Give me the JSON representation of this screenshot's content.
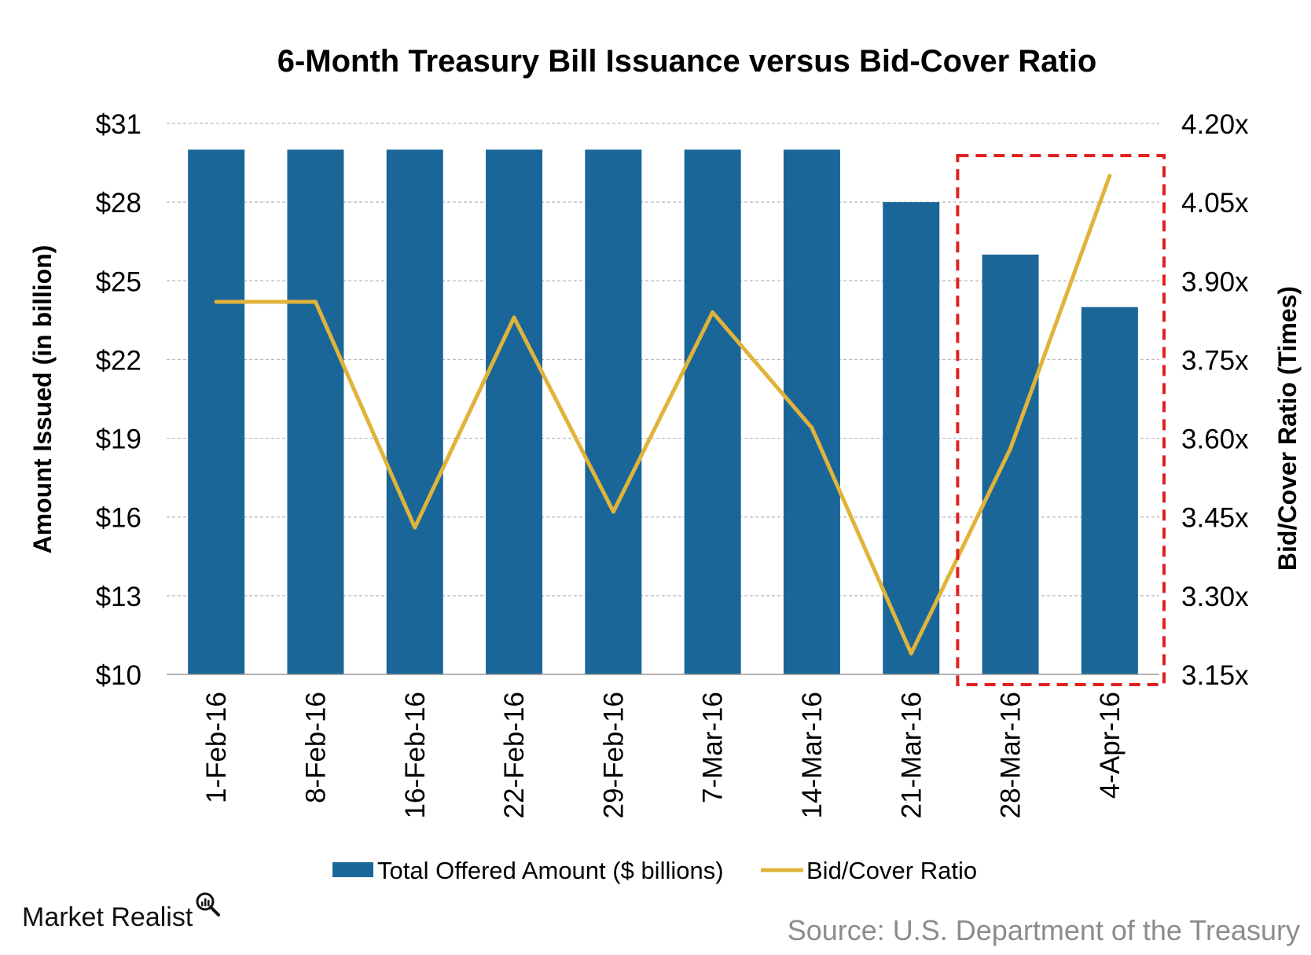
{
  "chart_data": {
    "type": "bar+line",
    "title": "6-Month Treasury Bill Issuance versus Bid-Cover Ratio",
    "categories": [
      "1-Feb-16",
      "8-Feb-16",
      "16-Feb-16",
      "22-Feb-16",
      "29-Feb-16",
      "7-Mar-16",
      "14-Mar-16",
      "21-Mar-16",
      "28-Mar-16",
      "4-Apr-16"
    ],
    "series": [
      {
        "name": "Total Offered Amount ($ billions)",
        "type": "bar",
        "axis": "left",
        "values": [
          30,
          30,
          30,
          30,
          30,
          30,
          30,
          28,
          26,
          24
        ]
      },
      {
        "name": "Bid/Cover Ratio",
        "type": "line",
        "axis": "right",
        "values": [
          3.86,
          3.86,
          3.43,
          3.83,
          3.46,
          3.84,
          3.62,
          3.19,
          3.58,
          4.1
        ]
      }
    ],
    "y_left": {
      "label": "Amount Issued (in billion)",
      "min": 10,
      "max": 31,
      "ticks": [
        "$10",
        "$13",
        "$16",
        "$19",
        "$22",
        "$25",
        "$28",
        "$31"
      ]
    },
    "y_right": {
      "label": "Bid/Cover Ratio (Times)",
      "min": 3.15,
      "max": 4.2,
      "ticks": [
        "3.15x",
        "3.30x",
        "3.45x",
        "3.60x",
        "3.75x",
        "3.90x",
        "4.05x",
        "4.20x"
      ]
    },
    "grid": true,
    "legend_position": "bottom",
    "highlight_categories": [
      "28-Mar-16",
      "4-Apr-16"
    ],
    "colors": {
      "bar": "#1a6699",
      "line": "#e0b33a",
      "highlight": "#e02020",
      "grid": "#b7b7b7"
    }
  },
  "branding": {
    "name": "Market Realist",
    "icon": "magnifier-chart-icon"
  },
  "source": "Source: U.S. Department of the Treasury"
}
